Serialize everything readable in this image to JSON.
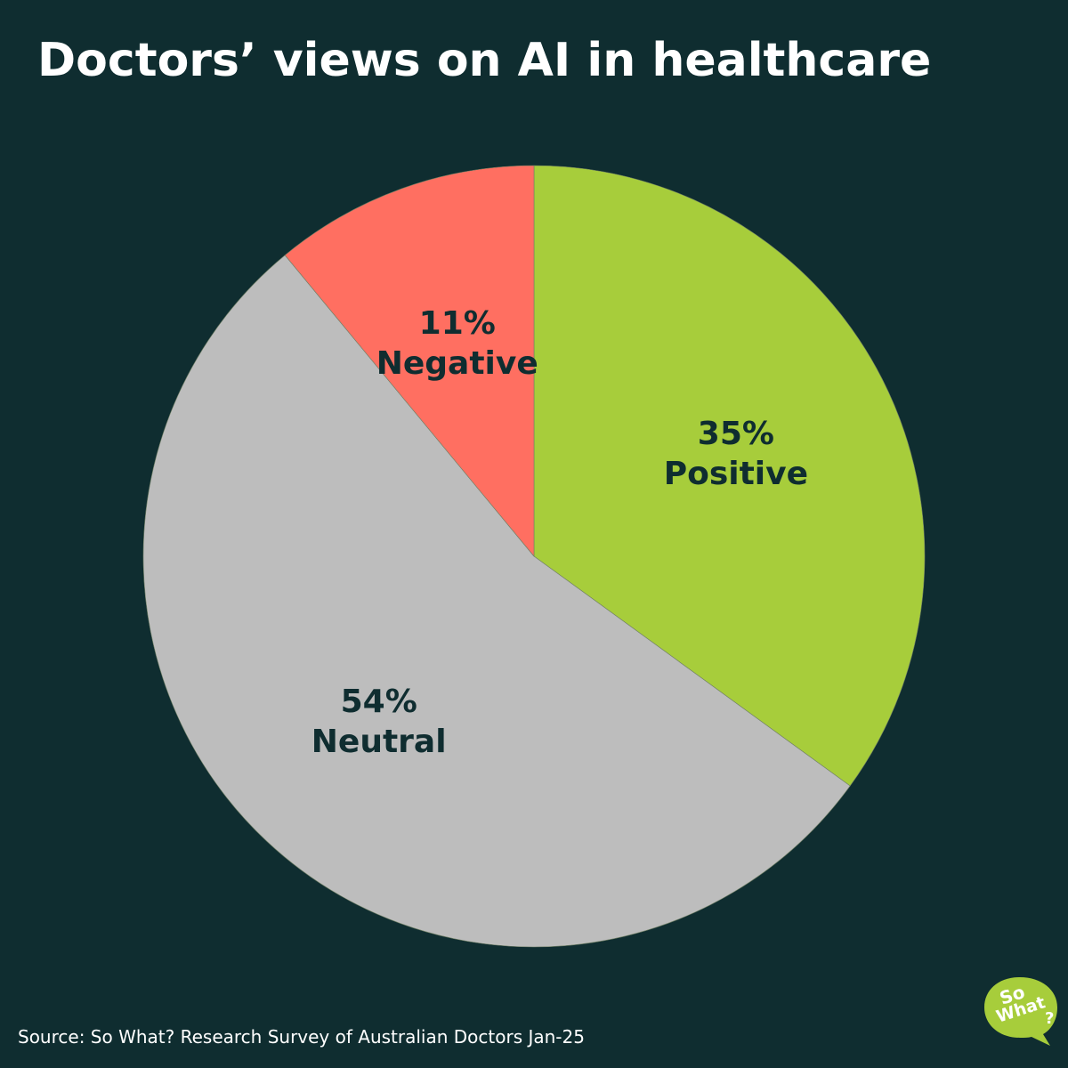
{
  "header": {
    "title": "Doctors’ views on AI in healthcare"
  },
  "chart_data": {
    "type": "pie",
    "title": "Doctors’ views on AI in healthcare",
    "slices": [
      {
        "label": "Positive",
        "value": 35,
        "value_label": "35%",
        "color": "#a7cd3b"
      },
      {
        "label": "Neutral",
        "value": 54,
        "value_label": "54%",
        "color": "#bdbdbd"
      },
      {
        "label": "Negative",
        "value": 11,
        "value_label": "11%",
        "color": "#ff6f61"
      }
    ],
    "start": "top",
    "direction": "clockwise",
    "legend": "none",
    "label_position": "inside"
  },
  "footer": {
    "source": "Source: So What? Research Survey of Australian Doctors Jan-25"
  },
  "logo": {
    "line1": "So",
    "line2": "What",
    "line3": "?",
    "color": "#a7cd3b"
  },
  "colors": {
    "background": "#0f2d30",
    "title": "#ffffff",
    "label": "#0f2d30"
  }
}
